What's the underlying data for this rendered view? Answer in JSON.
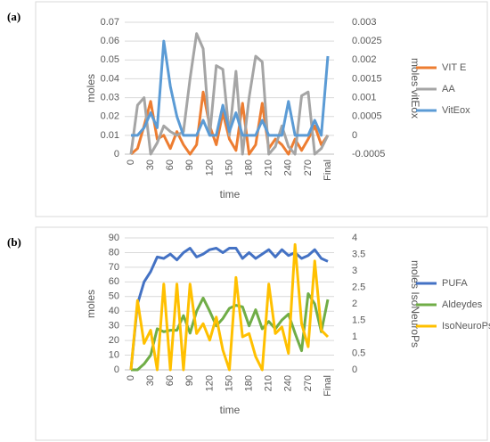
{
  "chart_data": [
    {
      "type": "line",
      "panel_label": "(a)",
      "y_label": "moles",
      "y2_label": "moles vitEox",
      "x_label": "time",
      "categories": [
        "0",
        null,
        null,
        "30",
        null,
        null,
        "60",
        null,
        null,
        "90",
        null,
        null,
        "120",
        null,
        null,
        "150",
        null,
        null,
        "180",
        null,
        null,
        "210",
        null,
        null,
        "240",
        null,
        null,
        "270",
        null,
        null,
        "Final"
      ],
      "ylim": [
        0,
        0.07
      ],
      "yticks": [
        0,
        0.01,
        0.02,
        0.03,
        0.04,
        0.05,
        0.06,
        0.07
      ],
      "y2lim": [
        -0.0005,
        0.003
      ],
      "y2ticks": [
        -0.0005,
        0,
        0.0005,
        0.001,
        0.0015,
        0.002,
        0.0025,
        0.003
      ],
      "grid": true,
      "legend": "right",
      "series": [
        {
          "name": "VIT E",
          "color": "#ed7d31",
          "values": [
            0,
            0.003,
            0.015,
            0.028,
            0.008,
            0.01,
            0.003,
            0.012,
            0.005,
            0,
            0.005,
            0.033,
            0.015,
            0.005,
            0.022,
            0.008,
            0.002,
            0.027,
            0,
            0.005,
            0.027,
            0.003,
            0.008,
            0.005,
            0,
            0.008,
            0.002,
            0.008,
            0.015,
            0.005,
            0.01
          ]
        },
        {
          "name": "AA",
          "color": "#a5a5a5",
          "values": [
            0,
            0.026,
            0.03,
            0,
            0.006,
            0.015,
            0.012,
            0.01,
            0.012,
            0.04,
            0.064,
            0.056,
            0.01,
            0.047,
            0.045,
            0.01,
            0.044,
            0,
            0.03,
            0.052,
            0.049,
            0,
            0.004,
            0.015,
            0.004,
            0,
            0.031,
            0.033,
            0,
            0.003,
            0.01
          ]
        },
        {
          "name": "VitEox",
          "color": "#5b9bd5",
          "axis": "y2",
          "values": [
            0,
            0,
            0.0002,
            0.0006,
            0.0002,
            0.0025,
            0.0013,
            0.0005,
            0,
            0,
            0,
            0.0004,
            0,
            0,
            0.0008,
            0.0001,
            0.0006,
            0,
            0,
            0,
            0.0004,
            0,
            0,
            0,
            0.0009,
            0,
            0,
            0,
            0.0004,
            0,
            0.0021
          ]
        }
      ]
    },
    {
      "type": "line",
      "panel_label": "(b)",
      "y_label": "moles",
      "y2_label": "moles IsoNeuroPs",
      "x_label": "time",
      "categories": [
        "0",
        null,
        null,
        "30",
        null,
        null,
        "60",
        null,
        null,
        "90",
        null,
        null,
        "120",
        null,
        null,
        "150",
        null,
        null,
        "180",
        null,
        null,
        "210",
        null,
        null,
        "240",
        null,
        null,
        "270",
        null,
        null,
        "Final"
      ],
      "ylim": [
        0,
        90
      ],
      "yticks": [
        0,
        10,
        20,
        30,
        40,
        50,
        60,
        70,
        80,
        90
      ],
      "y2lim": [
        0,
        4
      ],
      "y2ticks": [
        0,
        0.5,
        1,
        1.5,
        2,
        2.5,
        3,
        3.5,
        4
      ],
      "grid": true,
      "legend": "right",
      "series": [
        {
          "name": "PUFA",
          "color": "#4472c4",
          "values": [
            0,
            45,
            60,
            67,
            77,
            76,
            79,
            75,
            80,
            83,
            77,
            79,
            82,
            83,
            80,
            83,
            83,
            76,
            80,
            76,
            79,
            82,
            77,
            82,
            78,
            80,
            76,
            78,
            82,
            76,
            74
          ]
        },
        {
          "name": "Aldeydes",
          "color": "#70ad47",
          "values": [
            0,
            0,
            4,
            10,
            28,
            26,
            27,
            27,
            37,
            25,
            40,
            49,
            40,
            30,
            35,
            42,
            44,
            43,
            30,
            41,
            28,
            33,
            28,
            34,
            38,
            25,
            13,
            52,
            45,
            26,
            48
          ]
        },
        {
          "name": "IsoNeuroPs",
          "color": "#ffc000",
          "axis": "y2",
          "values": [
            0,
            2.1,
            0.8,
            1.2,
            0,
            2.6,
            0,
            2.6,
            0,
            2.6,
            1.1,
            1.4,
            0.9,
            1.6,
            0.6,
            0,
            2.8,
            1.0,
            1.1,
            0.4,
            0,
            2.6,
            1.1,
            1.3,
            0.5,
            3.8,
            1.4,
            0.7,
            3.3,
            1.2,
            1.0
          ]
        }
      ]
    }
  ]
}
